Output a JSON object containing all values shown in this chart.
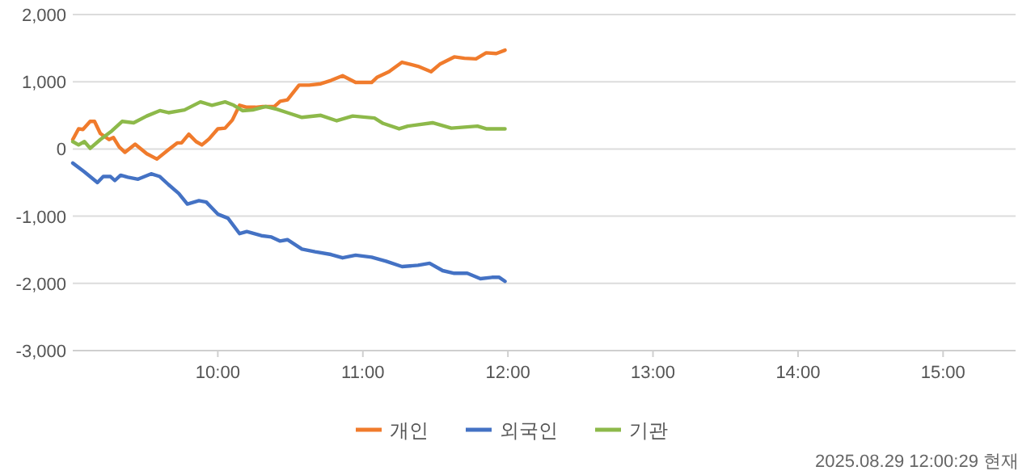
{
  "chart_data": {
    "type": "line",
    "xlim": [
      9,
      15.5
    ],
    "xticks": [
      {
        "value": 10,
        "label": "10:00"
      },
      {
        "value": 11,
        "label": "11:00"
      },
      {
        "value": 12,
        "label": "12:00"
      },
      {
        "value": 13,
        "label": "13:00"
      },
      {
        "value": 14,
        "label": "14:00"
      },
      {
        "value": 15,
        "label": "15:00"
      }
    ],
    "ylim": [
      -3000,
      2000
    ],
    "yticks": [
      {
        "value": -3000,
        "label": "-3,000"
      },
      {
        "value": -2000,
        "label": "-2,000"
      },
      {
        "value": -1000,
        "label": "-1,000"
      },
      0,
      {
        "value": 1000,
        "label": "1,000"
      },
      {
        "value": 2000,
        "label": "2,000"
      }
    ],
    "grid": "y",
    "legend": "bottom",
    "marker": "none",
    "line_style": "solid",
    "annotations": [
      "2025.08.29 12:00:29 현재"
    ],
    "series": [
      {
        "name": "개인",
        "color": "#f07b2c",
        "x": [
          9.0,
          9.04,
          9.07,
          9.12,
          9.15,
          9.19,
          9.25,
          9.28,
          9.32,
          9.36,
          9.43,
          9.51,
          9.58,
          9.66,
          9.72,
          9.75,
          9.8,
          9.85,
          9.89,
          9.94,
          10.0,
          10.05,
          10.1,
          10.15,
          10.2,
          10.26,
          10.31,
          10.39,
          10.43,
          10.48,
          10.56,
          10.63,
          10.71,
          10.78,
          10.86,
          10.95,
          11.06,
          11.1,
          11.18,
          11.27,
          11.38,
          11.47,
          11.53,
          11.63,
          11.7,
          11.78,
          11.85,
          11.92,
          11.98
        ],
        "values": [
          140,
          300,
          290,
          410,
          410,
          230,
          140,
          170,
          30,
          -50,
          70,
          -70,
          -150,
          -10,
          90,
          90,
          220,
          110,
          60,
          150,
          300,
          310,
          430,
          650,
          620,
          620,
          630,
          630,
          710,
          730,
          950,
          950,
          970,
          1020,
          1090,
          990,
          990,
          1070,
          1150,
          1290,
          1230,
          1150,
          1260,
          1370,
          1350,
          1340,
          1430,
          1420,
          1470
        ]
      },
      {
        "name": "외국인",
        "color": "#4472c4",
        "x": [
          9.0,
          9.08,
          9.17,
          9.21,
          9.26,
          9.29,
          9.33,
          9.38,
          9.45,
          9.54,
          9.6,
          9.66,
          9.73,
          9.79,
          9.87,
          9.92,
          10.0,
          10.07,
          10.15,
          10.2,
          10.3,
          10.37,
          10.43,
          10.48,
          10.58,
          10.67,
          10.78,
          10.86,
          10.95,
          11.06,
          11.16,
          11.27,
          11.38,
          11.46,
          11.55,
          11.63,
          11.72,
          11.81,
          11.89,
          11.94,
          11.98
        ],
        "values": [
          -210,
          -340,
          -500,
          -410,
          -410,
          -470,
          -390,
          -420,
          -450,
          -370,
          -410,
          -530,
          -660,
          -820,
          -770,
          -790,
          -970,
          -1030,
          -1260,
          -1230,
          -1290,
          -1310,
          -1370,
          -1350,
          -1490,
          -1530,
          -1570,
          -1620,
          -1580,
          -1610,
          -1670,
          -1750,
          -1730,
          -1700,
          -1810,
          -1850,
          -1850,
          -1930,
          -1910,
          -1910,
          -1970
        ]
      },
      {
        "name": "기관",
        "color": "#8db94a",
        "x": [
          9.0,
          9.04,
          9.08,
          9.12,
          9.19,
          9.27,
          9.34,
          9.42,
          9.51,
          9.6,
          9.66,
          9.77,
          9.88,
          9.96,
          10.05,
          10.11,
          10.17,
          10.24,
          10.33,
          10.41,
          10.48,
          10.58,
          10.71,
          10.82,
          10.93,
          11.08,
          11.14,
          11.25,
          11.31,
          11.48,
          11.61,
          11.79,
          11.85,
          11.98
        ],
        "values": [
          110,
          60,
          110,
          10,
          140,
          270,
          410,
          390,
          490,
          570,
          540,
          580,
          700,
          650,
          700,
          650,
          570,
          580,
          630,
          590,
          540,
          470,
          500,
          420,
          490,
          460,
          380,
          300,
          340,
          390,
          310,
          340,
          300,
          300
        ]
      }
    ]
  }
}
